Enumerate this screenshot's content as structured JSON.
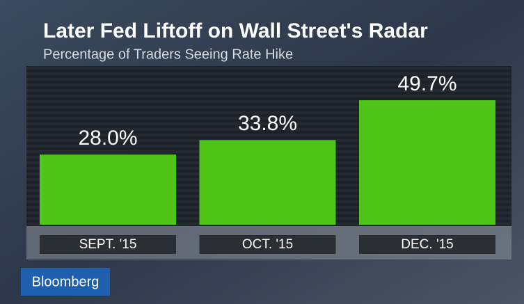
{
  "chart_data": {
    "type": "bar",
    "title": "Later Fed Liftoff on Wall Street's Radar",
    "subtitle": "Percentage of Traders Seeing Rate Hike",
    "categories": [
      "SEPT. '15",
      "OCT. '15",
      "DEC. '15"
    ],
    "values": [
      28.0,
      33.8,
      49.7
    ],
    "value_labels": [
      "28.0%",
      "33.8%",
      "49.7%"
    ],
    "color": "#4fc419"
  },
  "brand": "Bloomberg"
}
